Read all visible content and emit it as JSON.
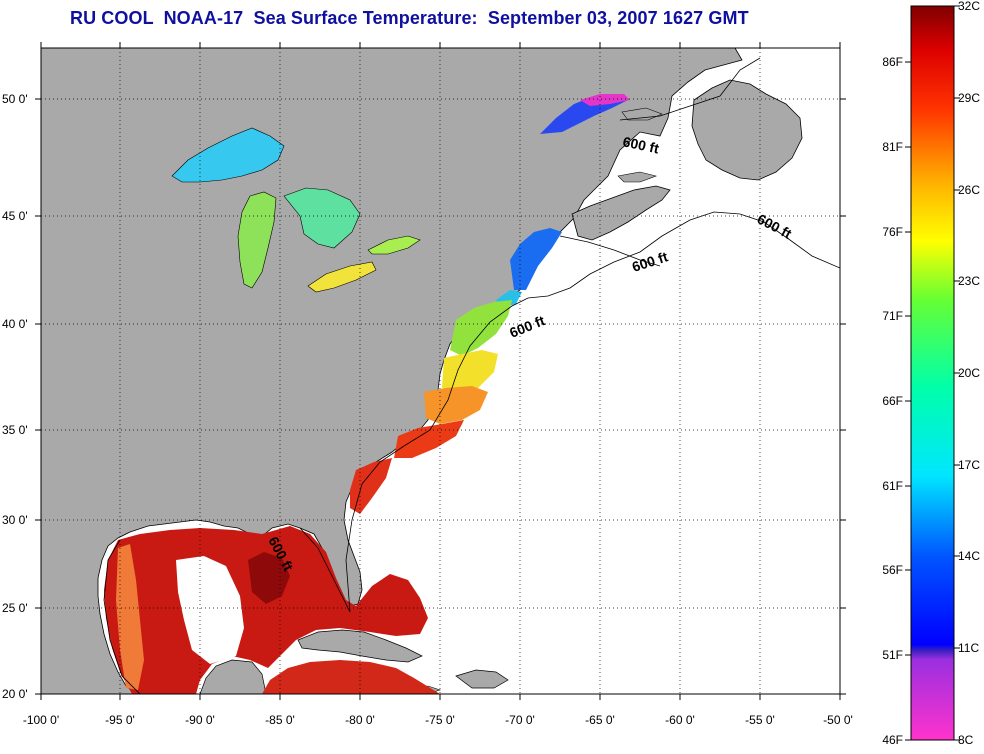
{
  "title": "RU COOL  NOAA-17  Sea Surface Temperature:  September 03, 2007 1627 GMT",
  "colors": {
    "land": "#a9a9a9",
    "ocean_nodata": "#ffffff",
    "title": "#1010a0",
    "grid": "#000000"
  },
  "map": {
    "lon_range": [
      -100,
      -50
    ],
    "lat_range": [
      20,
      52.5
    ],
    "lon_ticks": [
      "-100 0'",
      "-95 0'",
      "-90 0'",
      "-85 0'",
      "-80 0'",
      "-75 0'",
      "-70 0'",
      "-65 0'",
      "-60 0'",
      "-55 0'",
      "-50 0'"
    ],
    "lat_ticks": [
      "20 0'",
      "25 0'",
      "30 0'",
      "35 0'",
      "40 0'",
      "45 0'",
      "50 0'"
    ],
    "contour_labels": [
      "600 ft",
      "600 ft",
      "600 ft",
      "600 ft",
      "600 ft"
    ]
  },
  "colorbar": {
    "celsius": [
      "32C",
      "29C",
      "26C",
      "23C",
      "20C",
      "17C",
      "14C",
      "11C",
      "8C"
    ],
    "fahrenheit": [
      "86F",
      "81F",
      "76F",
      "71F",
      "66F",
      "61F",
      "56F",
      "51F",
      "46F"
    ]
  }
}
